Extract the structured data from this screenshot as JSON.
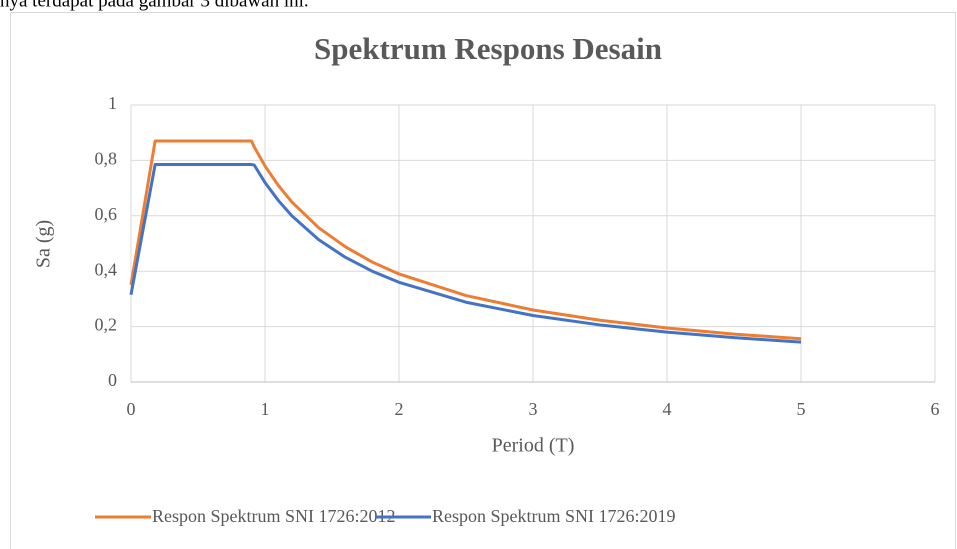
{
  "page_text": "nya terdapat pada gambar 3 dibawah ini.",
  "chart_data": {
    "type": "line",
    "title": "Spektrum Respons Desain",
    "x_label": "Period (T)",
    "y_label": "Sa (g)",
    "x": [
      0,
      0.18,
      0.9,
      0.92,
      1,
      1.1,
      1.2,
      1.4,
      1.6,
      1.8,
      2,
      2.5,
      3,
      3.5,
      4,
      4.5,
      5
    ],
    "series": [
      {
        "name": "Respon Spektrum SNI 1726:2012",
        "color": "#ed7d31",
        "values": [
          0.35,
          0.87,
          0.87,
          0.848,
          0.78,
          0.709,
          0.65,
          0.557,
          0.488,
          0.433,
          0.39,
          0.312,
          0.26,
          0.223,
          0.195,
          0.173,
          0.156
        ]
      },
      {
        "name": "Respon Spektrum SNI 1726:2019",
        "color": "#4472c4",
        "values": [
          0.315,
          0.785,
          0.785,
          0.783,
          0.72,
          0.655,
          0.6,
          0.514,
          0.45,
          0.4,
          0.36,
          0.288,
          0.24,
          0.206,
          0.18,
          0.16,
          0.144
        ]
      }
    ],
    "xlim": [
      0,
      6
    ],
    "xticks": [
      0,
      1,
      2,
      3,
      4,
      5,
      6
    ],
    "ylim": [
      0,
      1
    ],
    "yticks": [
      0,
      {
        "value": 0.2,
        "label": "0,2"
      },
      {
        "value": 0.4,
        "label": "0,4"
      },
      {
        "value": 0.6,
        "label": "0,6"
      },
      {
        "value": 0.8,
        "label": "0,8"
      },
      1
    ],
    "grid": true,
    "legend": "bottom"
  }
}
